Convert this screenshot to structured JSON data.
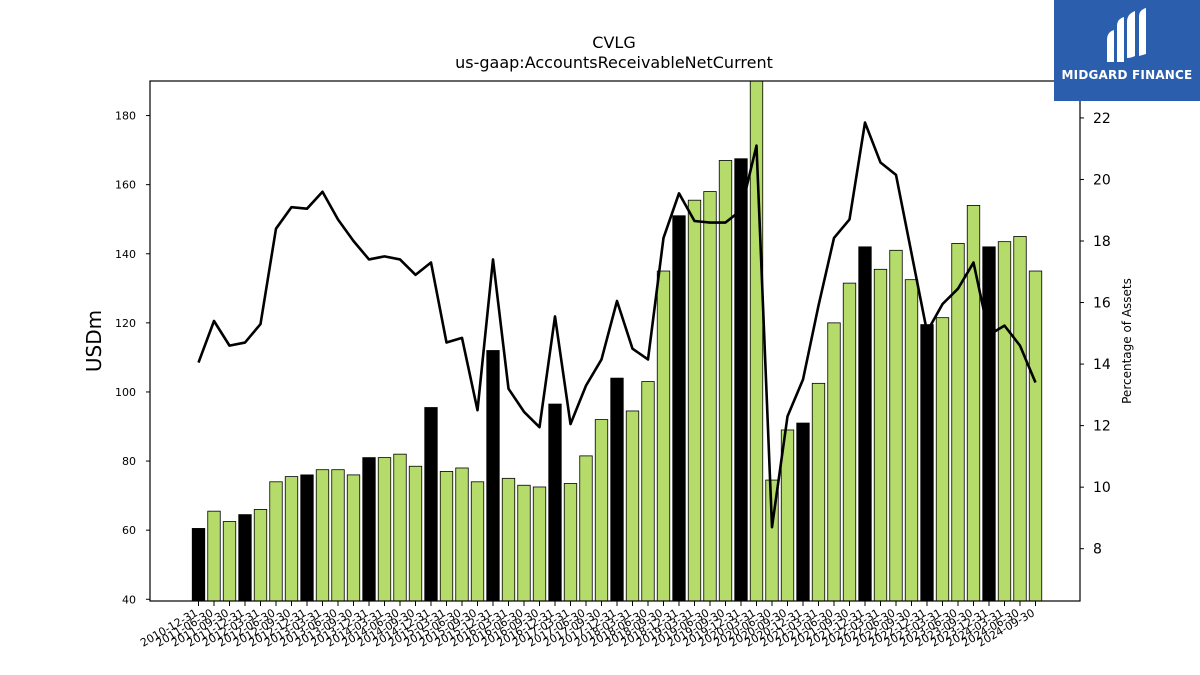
{
  "chart_data": {
    "type": "bar",
    "title": "CVLG",
    "subtitle": "us-gaap:AccountsReceivableNetCurrent",
    "ylabel": "USDm",
    "y2label": "Percentage of Assets",
    "ylim": [
      39.5,
      190
    ],
    "y2lim": [
      6.3,
      23.2
    ],
    "yticks": [
      40,
      60,
      80,
      100,
      120,
      140,
      160,
      180
    ],
    "y2ticks": [
      8,
      10,
      12,
      14,
      16,
      18,
      20,
      22
    ],
    "categories": [
      "2010-12-31",
      "2011-06-30",
      "2011-09-30",
      "2011-12-31",
      "2012-03-31",
      "2012-06-30",
      "2012-09-30",
      "2012-12-31",
      "2013-03-31",
      "2013-06-30",
      "2013-09-30",
      "2013-12-31",
      "2014-03-31",
      "2014-06-30",
      "2014-09-30",
      "2014-12-31",
      "2015-03-31",
      "2015-06-30",
      "2015-09-30",
      "2015-12-31",
      "2016-03-31",
      "2016-06-30",
      "2016-09-30",
      "2016-12-31",
      "2017-03-31",
      "2017-06-30",
      "2017-09-30",
      "2017-12-31",
      "2018-03-31",
      "2018-06-30",
      "2018-09-30",
      "2018-12-31",
      "2019-03-31",
      "2019-06-30",
      "2019-09-30",
      "2019-12-31",
      "2020-03-31",
      "2020-06-30",
      "2020-09-30",
      "2020-12-31",
      "2021-03-31",
      "2021-06-30",
      "2021-09-30",
      "2021-12-31",
      "2022-03-31",
      "2022-06-30",
      "2022-09-30",
      "2022-12-31",
      "2023-03-31",
      "2023-06-30",
      "2023-09-30",
      "2023-12-31",
      "2024-03-31",
      "2024-06-30",
      "2024-09-30"
    ],
    "series": [
      {
        "type": "bar",
        "values": [
          60.5,
          65.5,
          62.5,
          64.5,
          66,
          74,
          75.5,
          76,
          77.5,
          77.5,
          76,
          81,
          81,
          82,
          78.5,
          95.5,
          77,
          78,
          74,
          112,
          75,
          73,
          72.5,
          96.5,
          73.5,
          81.5,
          92,
          104,
          94.5,
          103,
          135,
          151,
          155.5,
          158,
          167,
          167.5,
          190,
          74.5,
          89,
          91,
          102.5,
          120,
          131.5,
          142,
          135.5,
          141,
          132.5,
          119.5,
          121.5,
          143,
          154,
          142,
          143.5,
          145,
          135
        ],
        "highlight": [
          true,
          false,
          false,
          true,
          false,
          false,
          false,
          true,
          false,
          false,
          false,
          true,
          false,
          false,
          false,
          true,
          false,
          false,
          false,
          true,
          false,
          false,
          false,
          true,
          false,
          false,
          false,
          true,
          false,
          false,
          false,
          true,
          false,
          false,
          false,
          true,
          false,
          false,
          false,
          true,
          false,
          false,
          false,
          true,
          false,
          false,
          false,
          true,
          false,
          false,
          false,
          true,
          false,
          false,
          false
        ],
        "color_highlight": "#000000",
        "color_normal": "#b5dc6a"
      },
      {
        "type": "line",
        "axis": "right",
        "values": [
          14.05,
          15.4,
          14.6,
          14.7,
          15.3,
          18.4,
          19.1,
          19.05,
          19.6,
          18.7,
          18,
          17.4,
          17.5,
          17.4,
          16.9,
          17.3,
          14.7,
          14.85,
          12.5,
          17.4,
          13.2,
          12.45,
          11.95,
          15.55,
          12.05,
          13.3,
          14.15,
          16.05,
          14.5,
          14.15,
          18.1,
          19.55,
          18.65,
          18.6,
          18.6,
          19,
          21.1,
          8.7,
          12.3,
          13.5,
          15.9,
          18.1,
          18.7,
          21.85,
          20.55,
          20.15,
          17.6,
          15.05,
          15.95,
          16.45,
          17.3,
          14.95,
          15.25,
          14.6,
          13.4
        ],
        "color": "#000000"
      }
    ],
    "grid": false,
    "legend": "none"
  },
  "branding": {
    "logo_text": "MIDGARD FINANCE",
    "logo_bg": "#2b5fad"
  }
}
